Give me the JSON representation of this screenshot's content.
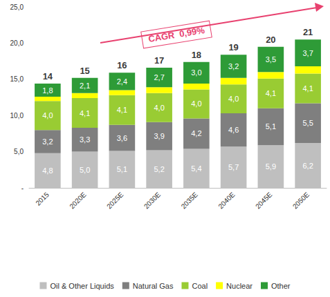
{
  "chart_data": {
    "type": "bar",
    "stacked": true,
    "categories": [
      "2015",
      "2020E",
      "2025E",
      "2030E",
      "2035E",
      "2040E",
      "2045E",
      "2050E"
    ],
    "series": [
      {
        "name": "Oil & Other Liquids",
        "color": "#bfbfbf",
        "data_labels": true,
        "values": [
          4.8,
          5.0,
          5.1,
          5.2,
          5.4,
          5.7,
          5.9,
          6.2
        ],
        "value_labels": [
          "4,8",
          "5,0",
          "5,1",
          "5,2",
          "5,4",
          "5,7",
          "5,9",
          "6,2"
        ]
      },
      {
        "name": "Natural Gas",
        "color": "#7f7f7f",
        "data_labels": true,
        "values": [
          3.2,
          3.3,
          3.6,
          3.9,
          4.2,
          4.6,
          5.1,
          5.5
        ],
        "value_labels": [
          "3,2",
          "3,3",
          "3,6",
          "3,9",
          "4,2",
          "4,6",
          "5,1",
          "5,5"
        ]
      },
      {
        "name": "Coal",
        "color": "#99cc33",
        "data_labels": true,
        "values": [
          4.0,
          4.1,
          4.1,
          4.0,
          4.0,
          4.0,
          4.1,
          4.1
        ],
        "value_labels": [
          "4,0",
          "4,1",
          "4,1",
          "4,0",
          "4,0",
          "4,0",
          "4,1",
          "4,1"
        ]
      },
      {
        "name": "Nuclear",
        "color": "#ffff00",
        "data_labels": false,
        "values": [
          0.6,
          0.7,
          0.7,
          0.8,
          0.8,
          0.9,
          0.9,
          1.0
        ]
      },
      {
        "name": "Other",
        "color": "#2e9b37",
        "data_labels": true,
        "values": [
          1.8,
          2.1,
          2.4,
          2.7,
          3.0,
          3.2,
          3.5,
          3.7
        ],
        "value_labels": [
          "1,8",
          "2,1",
          "2,4",
          "2,7",
          "3,0",
          "3,2",
          "3,5",
          "3,7"
        ]
      }
    ],
    "totals": [
      14,
      15,
      16,
      17,
      18,
      19,
      20,
      21
    ],
    "annotation": "CAGR  0,99%",
    "ylim": [
      0,
      25
    ],
    "yticks": [
      {
        "value": 0,
        "label": "-"
      },
      {
        "value": 5,
        "label": "5,0"
      },
      {
        "value": 10,
        "label": "10,0"
      },
      {
        "value": 15,
        "label": "15,0"
      },
      {
        "value": 20,
        "label": "20,0"
      },
      {
        "value": 25,
        "label": "25,0"
      }
    ],
    "grid": false,
    "legend": "bottom"
  }
}
